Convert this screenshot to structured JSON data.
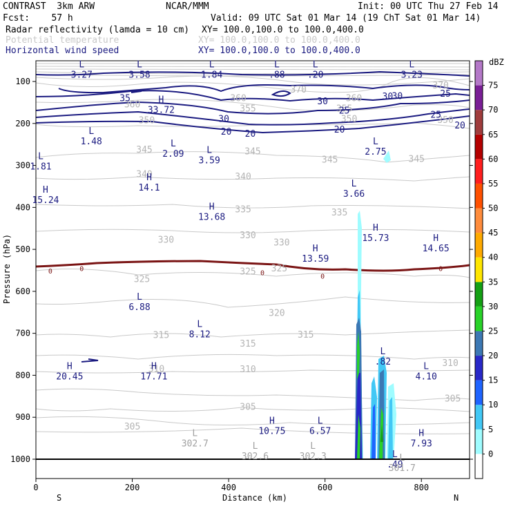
{
  "header": {
    "model": "CONTRAST  3km ARW",
    "center": "NCAR/MMM",
    "init": "Init: 00 UTC Thu 27 Feb 14",
    "fcst": "Fcst:    57 h",
    "valid": "Valid: 09 UTC Sat 01 Mar 14 (19 ChT Sat 01 Mar 14)",
    "fields": [
      {
        "name": "Radar reflectivity (lamda = 10 cm)",
        "xy": "XY= 100.0,100.0 to 100.0,400.0",
        "color": "#000000"
      },
      {
        "name": "Potential temperature",
        "xy": "XY= 100.0,100.0 to 100.0,400.0",
        "color": "#c8c8c8"
      },
      {
        "name": "Horizontal wind speed",
        "xy": "XY= 100.0,100.0 to 100.0,400.0",
        "color": "#1a1a80"
      }
    ]
  },
  "chart_data": {
    "type": "cross-section",
    "xlabel": "Distance (km)",
    "ylabel": "Pressure (hPa)",
    "xlim": [
      0,
      900
    ],
    "ylim": [
      1000,
      55
    ],
    "x_ticks": [
      0,
      200,
      400,
      600,
      800
    ],
    "y_ticks": [
      100,
      200,
      300,
      400,
      500,
      600,
      700,
      800,
      900,
      1000
    ],
    "x_end_labels": {
      "left": "S",
      "right": "N"
    },
    "colorbar": {
      "unit": "dBZ",
      "levels": [
        0,
        5,
        10,
        15,
        20,
        25,
        30,
        35,
        40,
        45,
        50,
        55,
        60,
        65,
        70,
        75
      ],
      "colors": [
        "#ffffff",
        "#9ffcff",
        "#42c8f5",
        "#1e64ff",
        "#2828c8",
        "#3c78b4",
        "#28d228",
        "#14a014",
        "#ffe600",
        "#ffaa00",
        "#ff8c3c",
        "#ff5000",
        "#ff1e1e",
        "#b40000",
        "#a03c3c",
        "#7a1e96",
        "#b478c8"
      ]
    },
    "theta_labels": [
      {
        "x": 545,
        "p": 120,
        "text": "370"
      },
      {
        "x": 840,
        "p": 110,
        "text": "370"
      },
      {
        "x": 420,
        "p": 140,
        "text": "360"
      },
      {
        "x": 660,
        "p": 140,
        "text": "360"
      },
      {
        "x": 200,
        "p": 155,
        "text": "360"
      },
      {
        "x": 440,
        "p": 165,
        "text": "355"
      },
      {
        "x": 640,
        "p": 165,
        "text": "355"
      },
      {
        "x": 230,
        "p": 193,
        "text": "350"
      },
      {
        "x": 650,
        "p": 190,
        "text": "350"
      },
      {
        "x": 850,
        "p": 192,
        "text": "350"
      },
      {
        "x": 225,
        "p": 263,
        "text": "345"
      },
      {
        "x": 450,
        "p": 267,
        "text": "345"
      },
      {
        "x": 610,
        "p": 287,
        "text": "345"
      },
      {
        "x": 790,
        "p": 285,
        "text": "345"
      },
      {
        "x": 225,
        "p": 321,
        "text": "340"
      },
      {
        "x": 430,
        "p": 327,
        "text": "340"
      },
      {
        "x": 430,
        "p": 405,
        "text": "335"
      },
      {
        "x": 630,
        "p": 413,
        "text": "335"
      },
      {
        "x": 270,
        "p": 478,
        "text": "330"
      },
      {
        "x": 440,
        "p": 467,
        "text": "330"
      },
      {
        "x": 510,
        "p": 484,
        "text": "330"
      },
      {
        "x": 220,
        "p": 571,
        "text": "325"
      },
      {
        "x": 440,
        "p": 553,
        "text": "325"
      },
      {
        "x": 505,
        "p": 546,
        "text": "325"
      },
      {
        "x": 500,
        "p": 652,
        "text": "320"
      },
      {
        "x": 260,
        "p": 705,
        "text": "315"
      },
      {
        "x": 440,
        "p": 725,
        "text": "315"
      },
      {
        "x": 560,
        "p": 704,
        "text": "315"
      },
      {
        "x": 250,
        "p": 785,
        "text": "310"
      },
      {
        "x": 440,
        "p": 786,
        "text": "310"
      },
      {
        "x": 860,
        "p": 771,
        "text": "310"
      },
      {
        "x": 440,
        "p": 876,
        "text": "305"
      },
      {
        "x": 865,
        "p": 856,
        "text": "305"
      },
      {
        "x": 200,
        "p": 923,
        "text": "305"
      }
    ],
    "wind_labels": [
      {
        "x": 185,
        "p": 140,
        "text": "35"
      },
      {
        "x": 750,
        "p": 135,
        "text": "30"
      },
      {
        "x": 595,
        "p": 148,
        "text": "30"
      },
      {
        "x": 390,
        "p": 190,
        "text": "30"
      },
      {
        "x": 640,
        "p": 170,
        "text": "25"
      },
      {
        "x": 850,
        "p": 130,
        "text": "25"
      },
      {
        "x": 830,
        "p": 180,
        "text": "25"
      },
      {
        "x": 880,
        "p": 205,
        "text": "20"
      },
      {
        "x": 395,
        "p": 220,
        "text": "20"
      },
      {
        "x": 445,
        "p": 225,
        "text": "20"
      },
      {
        "x": 630,
        "p": 215,
        "text": "20"
      },
      {
        "x": 730,
        "p": 136,
        "text": "30"
      },
      {
        "x": 30,
        "p": 551,
        "text": "0"
      },
      {
        "x": 95,
        "p": 545,
        "text": "0"
      },
      {
        "x": 470,
        "p": 555,
        "text": "0"
      },
      {
        "x": 595,
        "p": 563,
        "text": "0"
      },
      {
        "x": 840,
        "p": 545,
        "text": "0"
      }
    ],
    "extrema": [
      {
        "x": 95,
        "p": 66,
        "text": "L\n3.27"
      },
      {
        "x": 215,
        "p": 66,
        "text": "L\n3.58"
      },
      {
        "x": 365,
        "p": 66,
        "text": "L\n1.84"
      },
      {
        "x": 500,
        "p": 66,
        "text": "L\n.88"
      },
      {
        "x": 580,
        "p": 66,
        "text": "L\n.20"
      },
      {
        "x": 780,
        "p": 66,
        "text": "L\n3.23"
      },
      {
        "x": 260,
        "p": 150,
        "text": "H\n33.72"
      },
      {
        "x": 115,
        "p": 225,
        "text": "L\n1.48"
      },
      {
        "x": 285,
        "p": 255,
        "text": "L\n2.09"
      },
      {
        "x": 10,
        "p": 285,
        "text": "L\n1.81"
      },
      {
        "x": 360,
        "p": 270,
        "text": "L\n3.59"
      },
      {
        "x": 705,
        "p": 250,
        "text": "L\n2.75"
      },
      {
        "x": 235,
        "p": 335,
        "text": "H\n14.1"
      },
      {
        "x": 20,
        "p": 365,
        "text": "H\n15.24"
      },
      {
        "x": 660,
        "p": 350,
        "text": "L\n3.66"
      },
      {
        "x": 365,
        "p": 405,
        "text": "H\n13.68"
      },
      {
        "x": 705,
        "p": 455,
        "text": "H\n15.73"
      },
      {
        "x": 830,
        "p": 480,
        "text": "H\n14.65"
      },
      {
        "x": 580,
        "p": 505,
        "text": "H\n13.59"
      },
      {
        "x": 215,
        "p": 620,
        "text": "L\n6.88"
      },
      {
        "x": 340,
        "p": 685,
        "text": "L\n8.12"
      },
      {
        "x": 720,
        "p": 750,
        "text": "L\n.82"
      },
      {
        "x": 70,
        "p": 785,
        "text": "H\n20.45"
      },
      {
        "x": 245,
        "p": 785,
        "text": "H\n17.71"
      },
      {
        "x": 810,
        "p": 785,
        "text": "L\n4.10"
      },
      {
        "x": 490,
        "p": 915,
        "text": "H\n10.75"
      },
      {
        "x": 590,
        "p": 915,
        "text": "L\n6.57"
      },
      {
        "x": 800,
        "p": 945,
        "text": "H\n7.93"
      },
      {
        "x": 330,
        "p": 945,
        "text": "L\n302.7"
      },
      {
        "x": 455,
        "p": 975,
        "text": "L\n302.6"
      },
      {
        "x": 575,
        "p": 975,
        "text": "L\n302.3"
      },
      {
        "x": 745,
        "p": 995,
        "text": "L\n.49"
      },
      {
        "x": 760,
        "p": 1003,
        "text": "L\n301.7"
      }
    ]
  }
}
